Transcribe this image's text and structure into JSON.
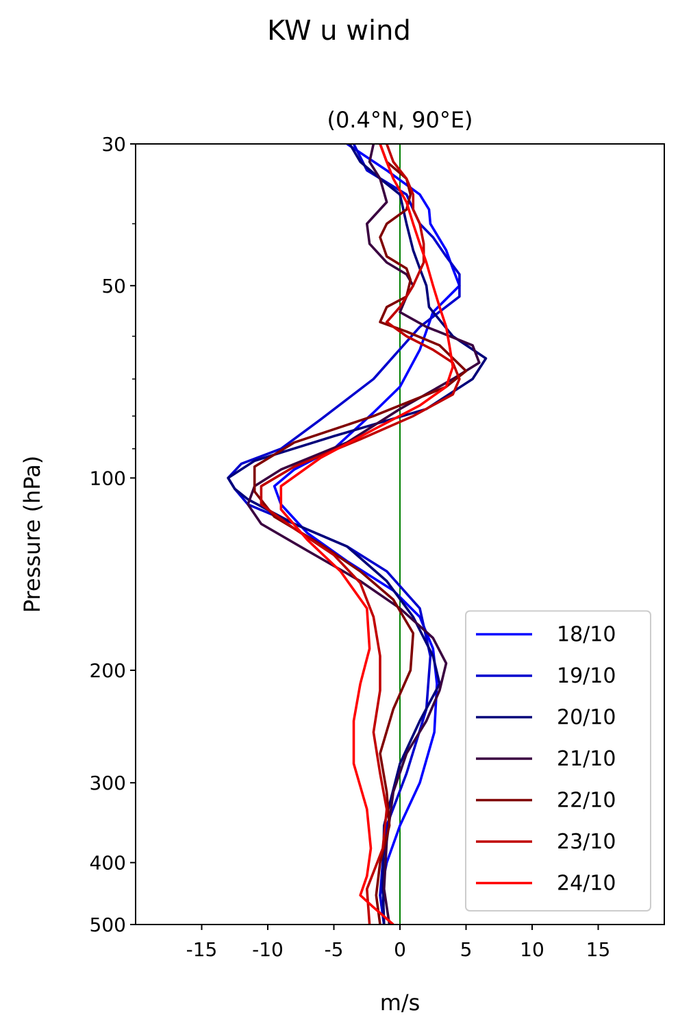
{
  "suptitle": "KW u wind",
  "chart_data": {
    "type": "line",
    "title": "(0.4°N, 90°E)",
    "xlabel": "m/s",
    "ylabel": "Pressure (hPa)",
    "xlim": [
      -20,
      20
    ],
    "ylim": [
      500,
      30
    ],
    "yscale": "log",
    "y_inverted": true,
    "xticks": [
      -15,
      -10,
      -5,
      0,
      5,
      10,
      15
    ],
    "xtick_labels": [
      "-15",
      "-10",
      "-5",
      "0",
      "5",
      "10",
      "15"
    ],
    "yticks": [
      30,
      50,
      100,
      200,
      300,
      400,
      500
    ],
    "ytick_labels": [
      "30",
      "50",
      "100",
      "200",
      "300",
      "400",
      "500"
    ],
    "yminor_ticks": [
      40,
      60,
      70,
      80,
      90
    ],
    "reference_line": {
      "x": 0,
      "color": "#008000"
    },
    "legend_position": "lower right",
    "series": [
      {
        "name": "18/10",
        "color": "#0000ff",
        "x": [
          -4.0,
          -1.0,
          1.5,
          2.2,
          2.3,
          3.5,
          4.0,
          4.5,
          2.5,
          1.5,
          0.0,
          -2.0,
          -5.0,
          -8.0,
          -9.5,
          -9.0,
          -7.0,
          -4.0,
          -0.5,
          1.5,
          2.5,
          2.8,
          2.6,
          1.5,
          0.0,
          -1.0,
          -1.5,
          -1.2
        ],
        "y": [
          30,
          33,
          36,
          38,
          40,
          44,
          47,
          50,
          55,
          63,
          72,
          79,
          90,
          97,
          103,
          110,
          122,
          135,
          150,
          165,
          185,
          210,
          250,
          300,
          350,
          400,
          450,
          500
        ]
      },
      {
        "name": "19/10",
        "color": "#0000cd",
        "x": [
          -3.5,
          -2.5,
          0.5,
          1.0,
          1.5,
          2.5,
          3.5,
          4.5,
          4.5,
          1.5,
          -2.0,
          -6.0,
          -9.0,
          -12.0,
          -13.0,
          -12.5,
          -11.5,
          -8.0,
          -4.0,
          -1.0,
          1.5,
          2.3,
          2.0,
          0.5,
          -1.0,
          -1.3,
          -1.5,
          -1.2
        ],
        "y": [
          30,
          33,
          36,
          38,
          40,
          42,
          45,
          48,
          52,
          58,
          70,
          81,
          90,
          95,
          100,
          104,
          110,
          118,
          128,
          140,
          160,
          190,
          230,
          290,
          350,
          400,
          450,
          500
        ]
      },
      {
        "name": "20/10",
        "color": "#00007a",
        "x": [
          -3.8,
          -3.0,
          -1.5,
          0.0,
          0.5,
          1.0,
          1.5,
          2.0,
          2.2,
          4.0,
          6.5,
          5.5,
          2.0,
          -5.0,
          -11.0,
          -13.0,
          -12.5,
          -11.5,
          -8.0,
          -4.0,
          -1.0,
          1.0,
          2.5,
          3.0,
          1.5,
          0.0,
          -1.2,
          -1.3,
          -1.2
        ],
        "y": [
          30,
          32,
          34,
          36,
          40,
          44,
          47,
          50,
          54,
          60,
          65,
          70,
          78,
          86,
          94,
          100,
          104,
          108,
          118,
          128,
          145,
          165,
          190,
          210,
          240,
          280,
          350,
          430,
          500
        ]
      },
      {
        "name": "21/10",
        "color": "#3a0040",
        "x": [
          -2.0,
          -2.3,
          -1.5,
          -1.0,
          -2.5,
          -2.3,
          -1.0,
          0.5,
          1.0,
          0.5,
          0.0,
          2.0,
          5.5,
          6.0,
          4.0,
          0.0,
          -4.0,
          -9.0,
          -11.0,
          -11.5,
          -10.5,
          -7.0,
          -3.0,
          0.0,
          2.5,
          3.5,
          3.0,
          2.0,
          0.5,
          -0.5,
          -1.0,
          -1.2,
          -0.8
        ],
        "y": [
          30,
          32,
          34,
          37,
          40,
          43,
          46,
          48,
          50,
          52,
          55,
          58,
          62,
          66,
          70,
          78,
          88,
          97,
          103,
          110,
          118,
          130,
          145,
          160,
          178,
          195,
          215,
          240,
          270,
          310,
          370,
          440,
          500
        ]
      },
      {
        "name": "22/10",
        "color": "#800000",
        "x": [
          -1.5,
          -1.0,
          0.5,
          0.8,
          0.5,
          -1.0,
          -1.5,
          -1.0,
          0.5,
          0.8,
          0.5,
          -1.0,
          -1.5,
          0.5,
          3.0,
          5.0,
          3.5,
          -2.0,
          -8.0,
          -11.0,
          -11.0,
          -9.5,
          -6.0,
          -3.0,
          -0.5,
          1.0,
          0.8,
          -0.5,
          -1.5,
          -1.0,
          -0.8,
          -1.5,
          -1.8,
          -1.5
        ],
        "y": [
          30,
          32,
          34,
          36,
          38,
          40,
          42,
          45,
          47,
          49,
          52,
          54,
          57,
          59,
          62,
          68,
          72,
          80,
          88,
          96,
          105,
          115,
          127,
          140,
          155,
          175,
          200,
          230,
          270,
          310,
          350,
          400,
          450,
          500
        ]
      },
      {
        "name": "23/10",
        "color": "#c00000",
        "x": [
          -1.0,
          -0.5,
          0.5,
          1.0,
          1.0,
          1.5,
          1.8,
          1.8,
          1.0,
          0.0,
          -1.0,
          0.5,
          2.5,
          4.0,
          4.5,
          4.0,
          1.0,
          -3.0,
          -8.0,
          -10.5,
          -10.5,
          -8.0,
          -5.0,
          -3.0,
          -2.0,
          -1.5,
          -1.5,
          -2.0,
          -1.5,
          -1.0,
          -1.3,
          -2.5,
          -2.3
        ],
        "y": [
          30,
          32,
          34,
          36,
          38,
          40,
          43,
          46,
          50,
          54,
          57,
          60,
          63,
          66,
          70,
          74,
          80,
          87,
          96,
          103,
          110,
          120,
          132,
          146,
          165,
          190,
          215,
          250,
          290,
          330,
          380,
          440,
          500
        ]
      },
      {
        "name": "24/10",
        "color": "#ff0000",
        "x": [
          -1.5,
          -1.0,
          -0.5,
          0.5,
          1.0,
          1.5,
          2.0,
          2.5,
          3.0,
          3.5,
          3.8,
          4.0,
          3.5,
          1.5,
          -2.0,
          -6.0,
          -9.0,
          -9.0,
          -7.0,
          -4.5,
          -2.5,
          -2.3,
          -3.0,
          -3.5,
          -3.5,
          -2.5,
          -2.2,
          -2.5,
          -3.0,
          -2.0,
          -0.5
        ],
        "y": [
          30,
          32,
          34,
          37,
          40,
          43,
          46,
          50,
          54,
          58,
          63,
          67,
          72,
          77,
          84,
          93,
          103,
          112,
          125,
          140,
          160,
          185,
          210,
          240,
          280,
          330,
          380,
          420,
          450,
          470,
          500
        ]
      }
    ]
  }
}
